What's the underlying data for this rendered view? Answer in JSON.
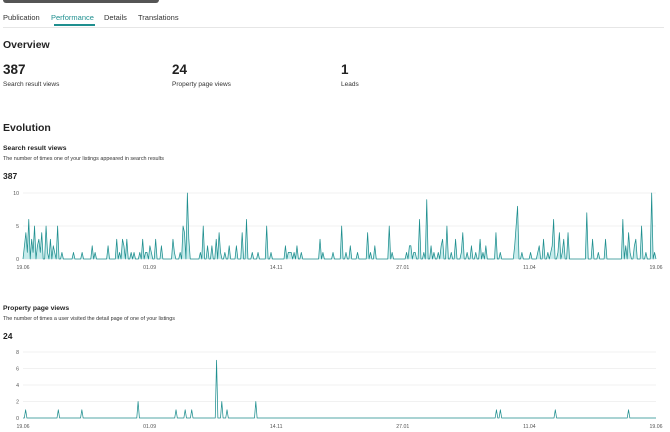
{
  "tabs": [
    {
      "label": "Publication",
      "active": false
    },
    {
      "label": "Performance",
      "active": true
    },
    {
      "label": "Details",
      "active": false
    },
    {
      "label": "Translations",
      "active": false
    }
  ],
  "overview": {
    "title": "Overview",
    "metrics": [
      {
        "value": "387",
        "label": "Search result views"
      },
      {
        "value": "24",
        "label": "Property page views"
      },
      {
        "value": "1",
        "label": "Leads"
      }
    ]
  },
  "evolution": {
    "title": "Evolution",
    "search": {
      "title": "Search result views",
      "description": "The number of times one of your listings appeared in search results",
      "total": "387"
    },
    "property": {
      "title": "Property page views",
      "description": "The number of times a user visited the detail page of one of your listings",
      "total": "24"
    }
  },
  "colors": {
    "accent": "#1f8f8f",
    "area_fill": "#c6ebeb",
    "grid": "#ececec"
  },
  "chart_data": [
    {
      "type": "area",
      "title": "Search result views",
      "x_tick_labels": [
        "19.06",
        "01.09",
        "14.11",
        "27.01",
        "11.04",
        "19.06"
      ],
      "y_ticks": [
        0,
        5,
        10
      ],
      "ylim": [
        0,
        10
      ],
      "grid": true,
      "values": [
        0,
        2,
        4,
        1,
        6,
        0,
        3,
        1,
        5,
        0,
        2,
        3,
        1,
        4,
        0,
        0,
        5,
        1,
        0,
        3,
        0,
        2,
        1,
        0,
        5,
        0,
        0,
        1,
        0,
        0,
        0,
        0,
        0,
        0,
        0,
        1,
        0,
        0,
        0,
        0,
        0,
        1,
        0,
        0,
        0,
        0,
        0,
        0,
        2,
        0,
        1,
        0,
        0,
        0,
        0,
        0,
        0,
        0,
        0,
        2,
        0,
        0,
        0,
        0,
        0,
        3,
        0,
        1,
        0,
        3,
        2,
        0,
        3,
        0,
        0,
        1,
        0,
        1,
        0,
        0,
        0,
        1,
        0,
        3,
        0,
        1,
        1,
        0,
        2,
        1,
        0,
        0,
        3,
        0,
        0,
        0,
        2,
        0,
        0,
        0,
        0,
        0,
        0,
        0,
        3,
        1,
        0,
        0,
        0,
        1,
        0,
        5,
        4,
        0,
        10,
        3,
        0,
        0,
        0,
        0,
        0,
        0,
        0,
        1,
        0,
        5,
        0,
        0,
        2,
        0,
        0,
        2,
        0,
        0,
        3,
        0,
        4,
        1,
        0,
        0,
        1,
        0,
        0,
        2,
        0,
        0,
        0,
        0,
        2,
        0,
        0,
        0,
        4,
        0,
        0,
        6,
        0,
        0,
        0,
        1,
        0,
        0,
        0,
        1,
        0,
        0,
        0,
        0,
        0,
        5,
        0,
        0,
        1,
        0,
        0,
        0,
        0,
        0,
        0,
        0,
        0,
        0,
        2,
        0,
        1,
        1,
        1,
        0,
        1,
        0,
        2,
        0,
        0,
        1,
        0,
        0,
        0,
        0,
        0,
        0,
        0,
        0,
        0,
        0,
        0,
        0,
        3,
        0,
        1,
        0,
        0,
        0,
        0,
        0,
        0,
        1,
        0,
        0,
        0,
        0,
        0,
        5,
        0,
        0,
        1,
        0,
        0,
        2,
        0,
        0,
        0,
        0,
        1,
        0,
        0,
        0,
        0,
        0,
        0,
        4,
        0,
        1,
        0,
        0,
        2,
        0,
        0,
        0,
        0,
        0,
        0,
        0,
        0,
        0,
        5,
        0,
        1,
        0,
        0,
        0,
        0,
        0,
        0,
        0,
        0,
        0,
        1,
        0,
        2,
        2,
        0,
        1,
        1,
        0,
        0,
        6,
        0,
        0,
        1,
        0,
        9,
        0,
        0,
        2,
        0,
        1,
        0,
        0,
        1,
        0,
        2,
        3,
        0,
        0,
        5,
        0,
        0,
        1,
        0,
        0,
        3,
        0,
        0,
        0,
        1,
        4,
        0,
        0,
        1,
        0,
        0,
        2,
        0,
        0,
        1,
        0,
        0,
        3,
        0,
        1,
        0,
        2,
        0,
        0,
        0,
        0,
        0,
        0,
        4,
        0,
        0,
        1,
        0,
        0,
        0,
        0,
        0,
        0,
        0,
        0,
        0,
        2,
        5,
        8,
        0,
        0,
        1,
        0,
        0,
        0,
        0,
        0,
        1,
        0,
        0,
        0,
        0,
        1,
        2,
        0,
        0,
        3,
        0,
        0,
        1,
        0,
        1,
        2,
        6,
        0,
        0,
        1,
        4,
        0,
        1,
        3,
        0,
        0,
        4,
        0,
        0,
        0,
        0,
        0,
        0,
        0,
        0,
        0,
        0,
        0,
        0,
        7,
        0,
        0,
        0,
        3,
        0,
        0,
        0,
        1,
        0,
        0,
        0,
        0,
        3,
        0,
        0,
        0,
        0,
        0,
        0,
        0,
        0,
        0,
        0,
        0,
        6,
        0,
        2,
        0,
        4,
        1,
        0,
        0,
        2,
        3,
        0,
        0,
        0,
        5,
        0,
        0,
        1,
        0,
        0,
        0,
        10,
        0,
        1,
        0
      ]
    },
    {
      "type": "line",
      "title": "Property page views",
      "x_tick_labels": [
        "19.06",
        "01.09",
        "14.11",
        "27.01",
        "11.04",
        "19.06"
      ],
      "y_ticks": [
        0,
        2,
        4,
        6,
        8
      ],
      "ylim": [
        0,
        8
      ],
      "grid": true,
      "values": [
        0,
        0,
        1,
        0,
        0,
        0,
        0,
        0,
        0,
        0,
        0,
        0,
        0,
        0,
        0,
        0,
        0,
        0,
        0,
        0,
        0,
        0,
        0,
        0,
        0,
        0,
        0,
        1,
        0,
        0,
        0,
        0,
        0,
        0,
        0,
        0,
        0,
        0,
        0,
        0,
        0,
        0,
        0,
        0,
        0,
        1,
        0,
        0,
        0,
        0,
        0,
        0,
        0,
        0,
        0,
        0,
        0,
        0,
        0,
        0,
        0,
        0,
        0,
        0,
        0,
        0,
        0,
        0,
        0,
        0,
        0,
        0,
        0,
        0,
        0,
        0,
        0,
        0,
        0,
        0,
        0,
        0,
        0,
        0,
        0,
        0,
        0,
        0,
        2,
        0,
        0,
        0,
        0,
        0,
        0,
        0,
        0,
        0,
        0,
        0,
        0,
        0,
        0,
        0,
        0,
        0,
        0,
        0,
        0,
        0,
        0,
        0,
        0,
        0,
        0,
        0,
        0,
        1,
        0,
        0,
        0,
        0,
        0,
        0,
        1,
        0,
        0,
        0,
        0,
        1,
        0,
        0,
        0,
        0,
        0,
        0,
        0,
        0,
        0,
        0,
        0,
        0,
        0,
        0,
        0,
        0,
        0,
        0,
        7,
        0,
        0,
        0,
        2,
        0,
        0,
        0,
        1,
        0,
        0,
        0,
        0,
        0,
        0,
        0,
        0,
        0,
        0,
        0,
        0,
        0,
        0,
        0,
        0,
        0,
        0,
        0,
        0,
        0,
        2,
        0,
        0,
        0,
        0,
        0,
        0,
        0,
        0,
        0,
        0,
        0,
        0,
        0,
        0,
        0,
        0,
        0,
        0,
        0,
        0,
        0,
        0,
        0,
        0,
        0,
        0,
        0,
        0,
        0,
        0,
        0,
        0,
        0,
        0,
        0,
        0,
        0,
        0,
        0,
        0,
        0,
        0,
        0,
        0,
        0,
        0,
        0,
        0,
        0,
        0,
        0,
        0,
        0,
        0,
        0,
        0,
        0,
        0,
        0,
        0,
        0,
        0,
        0,
        0,
        0,
        0,
        0,
        0,
        0,
        0,
        0,
        0,
        0,
        0,
        0,
        0,
        0,
        0,
        0,
        0,
        0,
        0,
        0,
        0,
        0,
        0,
        0,
        0,
        0,
        0,
        0,
        0,
        0,
        0,
        0,
        0,
        0,
        0,
        0,
        0,
        0,
        0,
        0,
        0,
        0,
        0,
        0,
        0,
        0,
        0,
        0,
        0,
        0,
        0,
        0,
        0,
        0,
        0,
        0,
        0,
        0,
        0,
        0,
        0,
        0,
        0,
        0,
        0,
        0,
        0,
        0,
        0,
        0,
        0,
        0,
        0,
        0,
        0,
        0,
        0,
        0,
        0,
        0,
        0,
        0,
        0,
        0,
        0,
        0,
        0,
        0,
        0,
        0,
        0,
        0,
        0,
        0,
        0,
        0,
        0,
        0,
        0,
        0,
        0,
        0,
        0,
        0,
        0,
        0,
        0,
        0,
        0,
        0,
        0,
        0,
        0,
        0,
        0,
        0,
        0,
        0,
        0,
        0,
        1,
        0,
        0,
        1,
        0,
        0,
        0,
        0,
        0,
        0,
        0,
        0,
        0,
        0,
        0,
        0,
        0,
        0,
        0,
        0,
        0,
        0,
        0,
        0,
        0,
        0,
        0,
        0,
        0,
        0,
        0,
        0,
        0,
        0,
        0,
        0,
        0,
        0,
        0,
        0,
        0,
        0,
        0,
        0,
        0,
        1,
        0,
        0,
        0,
        0,
        0,
        0,
        0,
        0,
        0,
        0,
        0,
        0,
        0,
        0,
        0,
        0,
        0,
        0,
        0,
        0,
        0,
        0,
        0,
        0,
        0,
        0,
        0,
        0,
        0,
        0,
        0,
        0,
        0,
        0,
        0,
        0,
        0,
        0,
        0,
        0,
        0,
        0,
        0,
        0,
        0,
        0,
        0,
        0,
        0,
        0,
        0,
        0,
        0,
        0,
        0,
        1,
        0,
        0,
        0,
        0,
        0,
        0,
        0,
        0,
        0,
        0,
        0,
        0,
        0,
        0,
        0,
        0,
        0,
        0,
        0,
        0,
        0
      ]
    }
  ]
}
